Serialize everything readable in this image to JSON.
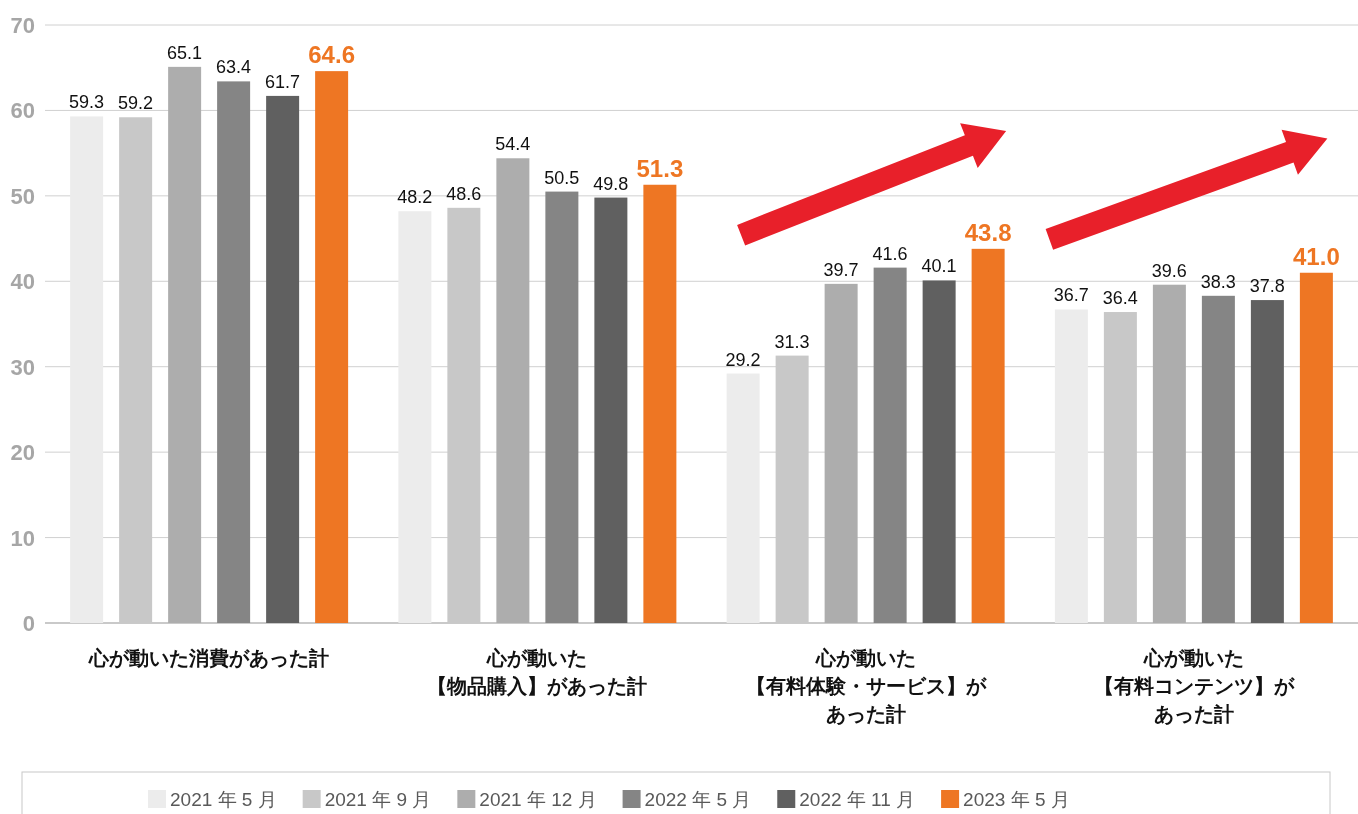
{
  "chart_data": {
    "type": "bar",
    "categories": [
      "心が動いた消費があった計",
      "心が動いた【物品購入】があった計",
      "心が動いた【有料体験・サービス】があった計",
      "心が動いた【有料コンテンツ】があった計"
    ],
    "series": [
      {
        "name": "2021 年 5 月",
        "color": "#ececec",
        "values": [
          59.3,
          48.2,
          29.2,
          36.7
        ]
      },
      {
        "name": "2021 年 9 月",
        "color": "#c8c8c8",
        "values": [
          59.2,
          48.6,
          31.3,
          36.4
        ]
      },
      {
        "name": "2021 年 12 月",
        "color": "#adadad",
        "values": [
          65.1,
          54.4,
          39.7,
          39.6
        ]
      },
      {
        "name": "2022 年 5 月",
        "color": "#858585",
        "values": [
          63.4,
          50.5,
          41.6,
          38.3
        ]
      },
      {
        "name": "2022 年 11 月",
        "color": "#606060",
        "values": [
          61.7,
          49.8,
          40.1,
          37.8
        ]
      },
      {
        "name": "2023 年 5 月",
        "color": "#ee7623",
        "values": [
          64.6,
          51.3,
          43.8,
          41.0
        ],
        "value_labels": [
          "64.6",
          "51.3",
          "43.8",
          "41.0"
        ]
      }
    ],
    "ylim": [
      0,
      70
    ],
    "yticks": [
      0,
      10,
      20,
      30,
      40,
      50,
      60,
      70
    ],
    "grid": "y",
    "legend": "bottom",
    "data_labels": true
  }
}
